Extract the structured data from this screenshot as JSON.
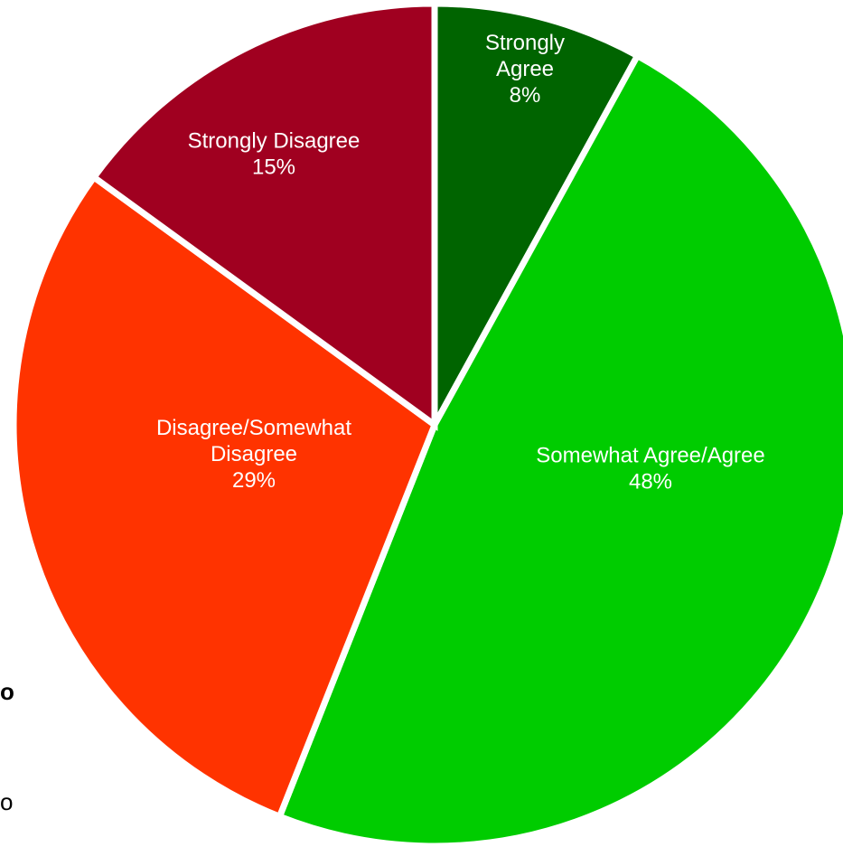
{
  "chart_data": {
    "type": "pie",
    "slices": [
      {
        "label_lines": [
          "Strongly",
          "Agree"
        ],
        "percent_label": "8%",
        "value": 8,
        "color": "#006400",
        "label_color": "#ffffff"
      },
      {
        "label_lines": [
          "Somewhat Agree/Agree"
        ],
        "percent_label": "48%",
        "value": 48,
        "color": "#00CC00",
        "label_color": "#ffffff"
      },
      {
        "label_lines": [
          "Disagree/Somewhat",
          "Disagree"
        ],
        "percent_label": "29%",
        "value": 29,
        "color": "#FF3300",
        "label_color": "#ffffff"
      },
      {
        "label_lines": [
          "Strongly Disagree"
        ],
        "percent_label": "15%",
        "value": 15,
        "color": "#A00020",
        "label_color": "#000000"
      }
    ],
    "start_angle_deg": 0,
    "direction": "clockwise",
    "legend": "none"
  },
  "edge_fragments": {
    "top": "o",
    "bottom": "o"
  }
}
